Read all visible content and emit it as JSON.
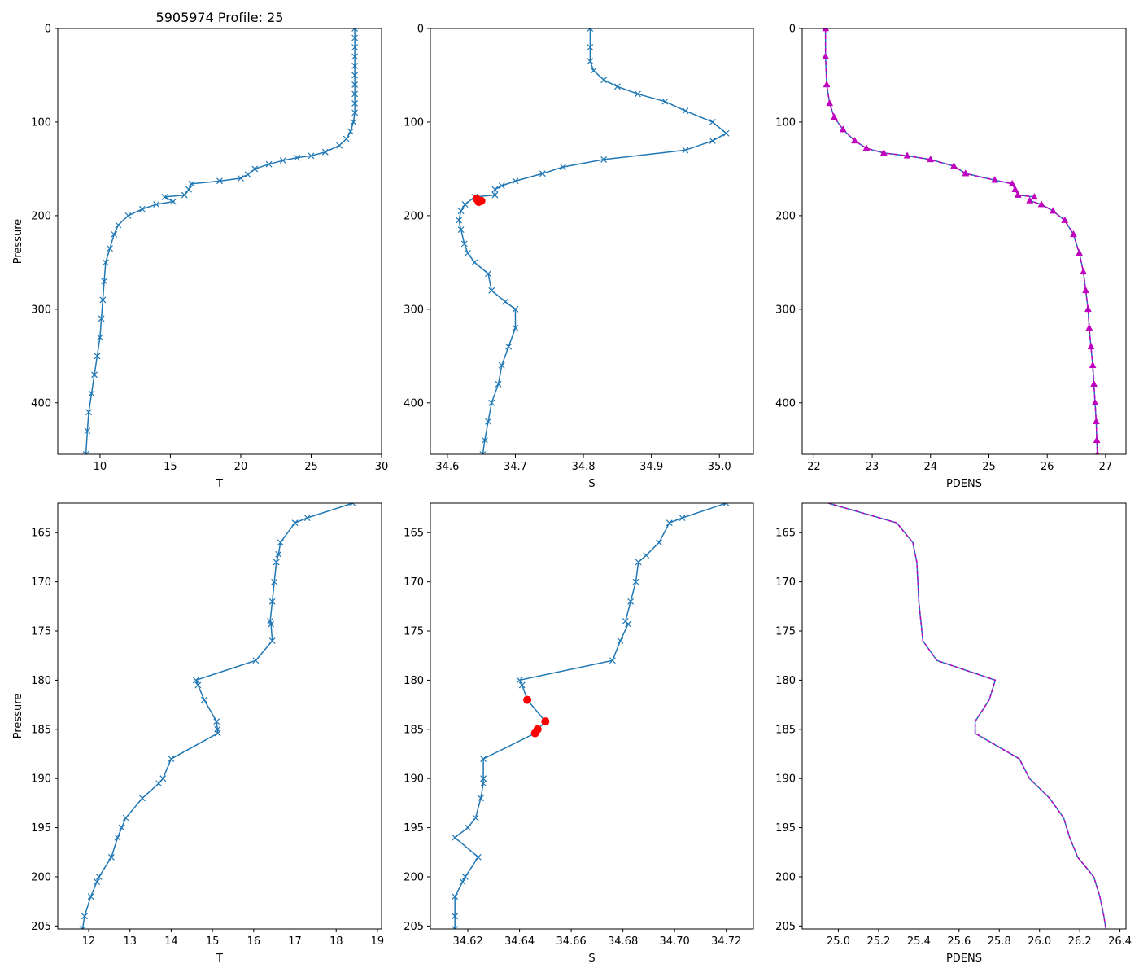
{
  "figure": {
    "title": "5905974 Profile: 25"
  },
  "colors": {
    "profile": "#1f77b4",
    "flag": "#ff0000",
    "density": "#bf00bf"
  },
  "chart_data": [
    {
      "type": "line",
      "panel": "top-left",
      "xlabel": "T",
      "ylabel": "Pressure",
      "xlim": [
        7,
        30
      ],
      "ylim": [
        0,
        455
      ],
      "y_inverted": true,
      "xticks": [
        10,
        15,
        20,
        25,
        30
      ],
      "yticks": [
        0,
        100,
        200,
        300,
        400
      ],
      "marker": "x",
      "series": [
        {
          "name": "T",
          "points": [
            [
              28.1,
              0
            ],
            [
              28.1,
              10
            ],
            [
              28.1,
              20
            ],
            [
              28.1,
              30
            ],
            [
              28.1,
              40
            ],
            [
              28.1,
              50
            ],
            [
              28.1,
              60
            ],
            [
              28.1,
              70
            ],
            [
              28.1,
              80
            ],
            [
              28.1,
              90
            ],
            [
              28.0,
              100
            ],
            [
              27.8,
              110
            ],
            [
              27.5,
              118
            ],
            [
              27.0,
              125
            ],
            [
              26.0,
              132
            ],
            [
              25.0,
              136
            ],
            [
              24.0,
              138
            ],
            [
              23.0,
              141
            ],
            [
              22.0,
              145
            ],
            [
              21.0,
              150
            ],
            [
              20.5,
              156
            ],
            [
              20.0,
              160
            ],
            [
              18.5,
              163
            ],
            [
              16.5,
              166
            ],
            [
              16.3,
              172
            ],
            [
              16.0,
              178
            ],
            [
              14.6,
              180
            ],
            [
              15.2,
              185
            ],
            [
              14.0,
              188
            ],
            [
              13.0,
              193
            ],
            [
              12.0,
              200
            ],
            [
              11.3,
              210
            ],
            [
              11.0,
              220
            ],
            [
              10.7,
              235
            ],
            [
              10.4,
              250
            ],
            [
              10.3,
              270
            ],
            [
              10.2,
              290
            ],
            [
              10.1,
              310
            ],
            [
              10.0,
              330
            ],
            [
              9.8,
              350
            ],
            [
              9.6,
              370
            ],
            [
              9.4,
              390
            ],
            [
              9.2,
              410
            ],
            [
              9.1,
              430
            ],
            [
              9.0,
              455
            ]
          ]
        }
      ]
    },
    {
      "type": "line",
      "panel": "top-middle",
      "xlabel": "S",
      "xlim": [
        34.575,
        35.05
      ],
      "ylim": [
        0,
        455
      ],
      "y_inverted": true,
      "xticks": [
        34.6,
        34.7,
        34.8,
        34.9,
        35.0
      ],
      "yticks": [
        0,
        100,
        200,
        300,
        400
      ],
      "marker": "x",
      "series": [
        {
          "name": "S",
          "points": [
            [
              34.81,
              0
            ],
            [
              34.81,
              20
            ],
            [
              34.81,
              35
            ],
            [
              34.815,
              45
            ],
            [
              34.83,
              55
            ],
            [
              34.85,
              62
            ],
            [
              34.88,
              70
            ],
            [
              34.92,
              78
            ],
            [
              34.95,
              88
            ],
            [
              34.99,
              100
            ],
            [
              35.01,
              112
            ],
            [
              34.99,
              120
            ],
            [
              34.95,
              130
            ],
            [
              34.83,
              140
            ],
            [
              34.77,
              148
            ],
            [
              34.74,
              155
            ],
            [
              34.7,
              163
            ],
            [
              34.68,
              168
            ],
            [
              34.67,
              172
            ],
            [
              34.67,
              178
            ],
            [
              34.64,
              180
            ],
            [
              34.626,
              188
            ],
            [
              34.62,
              195
            ],
            [
              34.617,
              205
            ],
            [
              34.62,
              215
            ],
            [
              34.625,
              230
            ],
            [
              34.63,
              240
            ],
            [
              34.64,
              250
            ],
            [
              34.66,
              262
            ],
            [
              34.665,
              280
            ],
            [
              34.685,
              292
            ],
            [
              34.7,
              300
            ],
            [
              34.7,
              320
            ],
            [
              34.69,
              340
            ],
            [
              34.68,
              360
            ],
            [
              34.675,
              380
            ],
            [
              34.665,
              400
            ],
            [
              34.66,
              420
            ],
            [
              34.655,
              440
            ],
            [
              34.652,
              455
            ]
          ]
        }
      ],
      "flagged": {
        "name": "flagged S",
        "points": [
          [
            34.643,
            182
          ],
          [
            34.65,
            184.2
          ],
          [
            34.647,
            185
          ],
          [
            34.646,
            185.4
          ]
        ]
      }
    },
    {
      "type": "line",
      "panel": "top-right",
      "xlabel": "PDENS",
      "xlim": [
        21.8,
        27.35
      ],
      "ylim": [
        0,
        455
      ],
      "y_inverted": true,
      "xticks": [
        22,
        23,
        24,
        25,
        26,
        27
      ],
      "yticks": [
        0,
        100,
        200,
        300,
        400
      ],
      "marker": "triangle",
      "series": [
        {
          "name": "PDENS",
          "points": [
            [
              22.2,
              0
            ],
            [
              22.2,
              30
            ],
            [
              22.22,
              60
            ],
            [
              22.27,
              80
            ],
            [
              22.35,
              95
            ],
            [
              22.5,
              108
            ],
            [
              22.7,
              120
            ],
            [
              22.9,
              128
            ],
            [
              23.2,
              133
            ],
            [
              23.6,
              136
            ],
            [
              24.0,
              140
            ],
            [
              24.4,
              147
            ],
            [
              24.6,
              155
            ],
            [
              25.1,
              162
            ],
            [
              25.4,
              166
            ],
            [
              25.45,
              172
            ],
            [
              25.5,
              178
            ],
            [
              25.78,
              180
            ],
            [
              25.7,
              184
            ],
            [
              25.9,
              188
            ],
            [
              26.1,
              195
            ],
            [
              26.3,
              205
            ],
            [
              26.45,
              220
            ],
            [
              26.55,
              240
            ],
            [
              26.62,
              260
            ],
            [
              26.66,
              280
            ],
            [
              26.7,
              300
            ],
            [
              26.72,
              320
            ],
            [
              26.75,
              340
            ],
            [
              26.78,
              360
            ],
            [
              26.8,
              380
            ],
            [
              26.82,
              400
            ],
            [
              26.84,
              420
            ],
            [
              26.85,
              440
            ],
            [
              26.86,
              455
            ]
          ]
        }
      ]
    },
    {
      "type": "line",
      "panel": "bottom-left",
      "xlabel": "T",
      "ylabel": "Pressure",
      "xlim": [
        11.25,
        19.1
      ],
      "ylim": [
        162,
        205.3
      ],
      "y_inverted": true,
      "xticks": [
        12,
        13,
        14,
        15,
        16,
        17,
        18,
        19
      ],
      "yticks": [
        165,
        170,
        175,
        180,
        185,
        190,
        195,
        200,
        205
      ],
      "marker": "x",
      "series": [
        {
          "name": "T",
          "points": [
            [
              18.4,
              162
            ],
            [
              17.3,
              163.5
            ],
            [
              17.0,
              164
            ],
            [
              16.65,
              166
            ],
            [
              16.6,
              167.2
            ],
            [
              16.55,
              168
            ],
            [
              16.5,
              170
            ],
            [
              16.45,
              172
            ],
            [
              16.4,
              174
            ],
            [
              16.42,
              174.3
            ],
            [
              16.45,
              176
            ],
            [
              16.05,
              178
            ],
            [
              14.6,
              180
            ],
            [
              14.65,
              180.5
            ],
            [
              14.8,
              182
            ],
            [
              15.1,
              184.2
            ],
            [
              15.12,
              185
            ],
            [
              15.13,
              185.4
            ],
            [
              14.0,
              188
            ],
            [
              13.8,
              190
            ],
            [
              13.7,
              190.5
            ],
            [
              13.3,
              192
            ],
            [
              12.9,
              194
            ],
            [
              12.8,
              195
            ],
            [
              12.7,
              196
            ],
            [
              12.55,
              198
            ],
            [
              12.25,
              200
            ],
            [
              12.2,
              200.5
            ],
            [
              12.05,
              202
            ],
            [
              11.9,
              204
            ],
            [
              11.85,
              205.3
            ]
          ]
        }
      ]
    },
    {
      "type": "line",
      "panel": "bottom-middle",
      "xlabel": "S",
      "xlim": [
        34.6055,
        34.7305
      ],
      "ylim": [
        162,
        205.3
      ],
      "y_inverted": true,
      "xticks": [
        34.62,
        34.64,
        34.66,
        34.68,
        34.7,
        34.72
      ],
      "yticks": [
        165,
        170,
        175,
        180,
        185,
        190,
        195,
        200,
        205
      ],
      "marker": "x",
      "series": [
        {
          "name": "S",
          "points": [
            [
              34.72,
              162
            ],
            [
              34.703,
              163.5
            ],
            [
              34.698,
              164
            ],
            [
              34.694,
              166
            ],
            [
              34.689,
              167.3
            ],
            [
              34.686,
              168
            ],
            [
              34.685,
              170
            ],
            [
              34.683,
              172
            ],
            [
              34.681,
              174
            ],
            [
              34.682,
              174.3
            ],
            [
              34.679,
              176
            ],
            [
              34.676,
              178
            ],
            [
              34.64,
              180
            ],
            [
              34.641,
              180.5
            ],
            [
              34.643,
              182
            ],
            [
              34.65,
              184.2
            ],
            [
              34.647,
              185
            ],
            [
              34.646,
              185.4
            ],
            [
              34.626,
              188
            ],
            [
              34.626,
              190
            ],
            [
              34.626,
              190.5
            ],
            [
              34.625,
              192
            ],
            [
              34.623,
              194
            ],
            [
              34.62,
              195
            ],
            [
              34.615,
              196
            ],
            [
              34.624,
              198
            ],
            [
              34.619,
              200
            ],
            [
              34.618,
              200.5
            ],
            [
              34.615,
              202
            ],
            [
              34.615,
              204
            ],
            [
              34.615,
              205.3
            ]
          ]
        }
      ],
      "flagged": {
        "name": "flagged S",
        "points": [
          [
            34.643,
            182
          ],
          [
            34.65,
            184.2
          ],
          [
            34.647,
            185
          ],
          [
            34.646,
            185.4
          ]
        ]
      }
    },
    {
      "type": "line",
      "panel": "bottom-right",
      "xlabel": "PDENS",
      "xlim": [
        24.82,
        26.43
      ],
      "ylim": [
        162,
        205.3
      ],
      "y_inverted": true,
      "xticks": [
        25.0,
        25.2,
        25.4,
        25.6,
        25.8,
        26.0,
        26.2,
        26.4
      ],
      "yticks": [
        165,
        170,
        175,
        180,
        185,
        190,
        195,
        200,
        205
      ],
      "marker": "none",
      "series": [
        {
          "name": "PDENS",
          "points": [
            [
              24.95,
              162
            ],
            [
              25.29,
              164
            ],
            [
              25.37,
              166
            ],
            [
              25.39,
              168
            ],
            [
              25.4,
              172
            ],
            [
              25.42,
              176
            ],
            [
              25.49,
              178
            ],
            [
              25.78,
              180
            ],
            [
              25.75,
              182
            ],
            [
              25.68,
              184.2
            ],
            [
              25.68,
              185.4
            ],
            [
              25.9,
              188
            ],
            [
              25.95,
              190
            ],
            [
              26.05,
              192
            ],
            [
              26.12,
              194
            ],
            [
              26.15,
              196
            ],
            [
              26.19,
              198
            ],
            [
              26.27,
              200
            ],
            [
              26.3,
              202
            ],
            [
              26.32,
              204
            ],
            [
              26.33,
              205.3
            ]
          ]
        }
      ]
    }
  ]
}
